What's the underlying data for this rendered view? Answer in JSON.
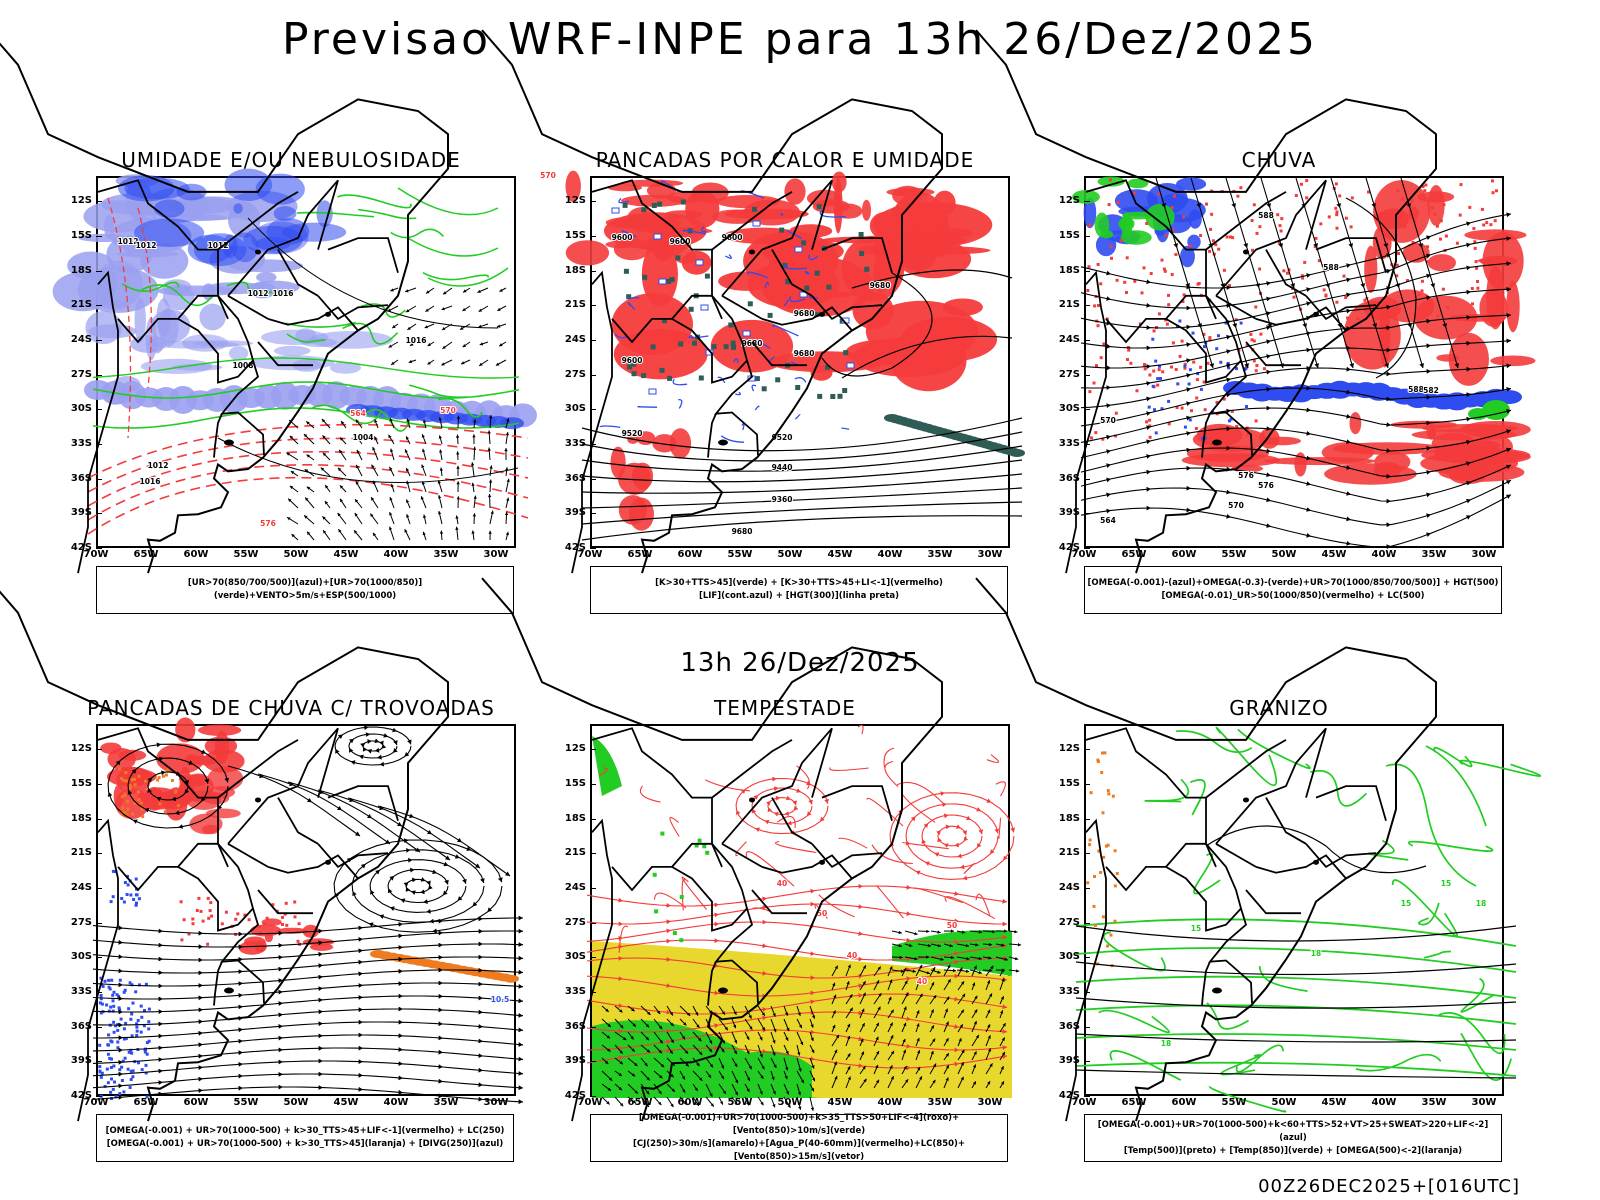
{
  "header": {
    "title": "Previsao WRF-INPE  para 13h 26/Dez/2025",
    "subtitle": "13h 26/Dez/2025",
    "footer": "00Z26DEC2025+[016UTC]"
  },
  "axes": {
    "lat_labels": [
      "12S",
      "15S",
      "18S",
      "21S",
      "24S",
      "27S",
      "30S",
      "33S",
      "36S",
      "39S",
      "42S"
    ],
    "lon_labels": [
      "70W",
      "65W",
      "60W",
      "55W",
      "50W",
      "45W",
      "40W",
      "35W",
      "30W"
    ]
  },
  "colors": {
    "red": "#f43b3b",
    "blue": "#2f4cf0",
    "lightblue": "#9aa0f0",
    "green": "#22cc22",
    "darkgreen": "#2f5c55",
    "orange": "#f07a1e",
    "yellow": "#e8d82e",
    "purple": "#9933cc",
    "black": "#000000"
  },
  "panels": [
    {
      "id": "umidade",
      "title": "UMIDADE E/OU NEBULOSIDADE",
      "caption": [
        "[UR>70(850/700/500)](azul)+[UR>70(1000/850)](verde)+VENTO>5m/s+ESP(500/1000)"
      ],
      "contour_labels": [
        "1012",
        "1012",
        "1012",
        "1012",
        "1016",
        "1016",
        "1008",
        "1004",
        "1012",
        "1016",
        "576",
        "570",
        "564",
        "570"
      ]
    },
    {
      "id": "pancadas-calor",
      "title": "PANCADAS POR CALOR E UMIDADE",
      "caption": [
        "[K>30+TTS>45](verde) + [K>30+TTS>45+LI<-1](vermelho)",
        "[LIF](cont.azul) + [HGT(300)](linha preta)"
      ],
      "contour_labels": [
        "9600",
        "9600",
        "9600",
        "9680",
        "9680",
        "9680",
        "9680",
        "9600",
        "9520",
        "9520",
        "9440",
        "9360",
        "9680"
      ]
    },
    {
      "id": "chuva",
      "title": "CHUVA",
      "caption": [
        "[OMEGA(-0.001)-(azul)+OMEGA(-0.3)-(verde)+UR>70(1000/850/700/500)] + HGT(500)",
        "[OMEGA(-0.01)_UR>50(1000/850)(vermelho) + LC(500)"
      ],
      "contour_labels": [
        "588",
        "588",
        "588",
        "576",
        "576",
        "570",
        "564",
        "582",
        "570"
      ]
    },
    {
      "id": "pancadas-trovoadas",
      "title": "PANCADAS DE CHUVA C/ TROVOADAS",
      "caption": [
        "[OMEGA(-0.001) + UR>70(1000-500) + k>30_TTS>45+LIF<-1](vermelho) + LC(250)",
        "[OMEGA(-0.001) + UR>70(1000-500) + k>30_TTS>45](laranja) + [DIVG(250)](azul)"
      ],
      "contour_labels": [
        "10.5"
      ]
    },
    {
      "id": "tempestade",
      "title": "TEMPESTADE",
      "caption": [
        "[OMEGA(-0.001)+UR>70(1000-500)+k>35_TTS>50+LIF<-4](roxo)+[Vento(850)>10m/s](verde)",
        "[CJ(250)>30m/s](amarelo)+[Agua_P(40-60mm)](vermelho)+LC(850)+[Vento(850)>15m/s](vetor)"
      ],
      "contour_labels": [
        "40",
        "50",
        "40",
        "50",
        "40"
      ]
    },
    {
      "id": "granizo",
      "title": "GRANIZO",
      "caption": [
        "[OMEGA(-0.001)+UR>70(1000-500)+k<60+TTS>52+VT>25+SWEAT>220+LIF<-2](azul)",
        "[Temp(500)](preto) + [Temp(850)](verde) + [OMEGA(500)<-2](laranja)"
      ],
      "contour_labels": [
        "15",
        "18",
        "15",
        "18",
        "15",
        "18"
      ]
    }
  ]
}
